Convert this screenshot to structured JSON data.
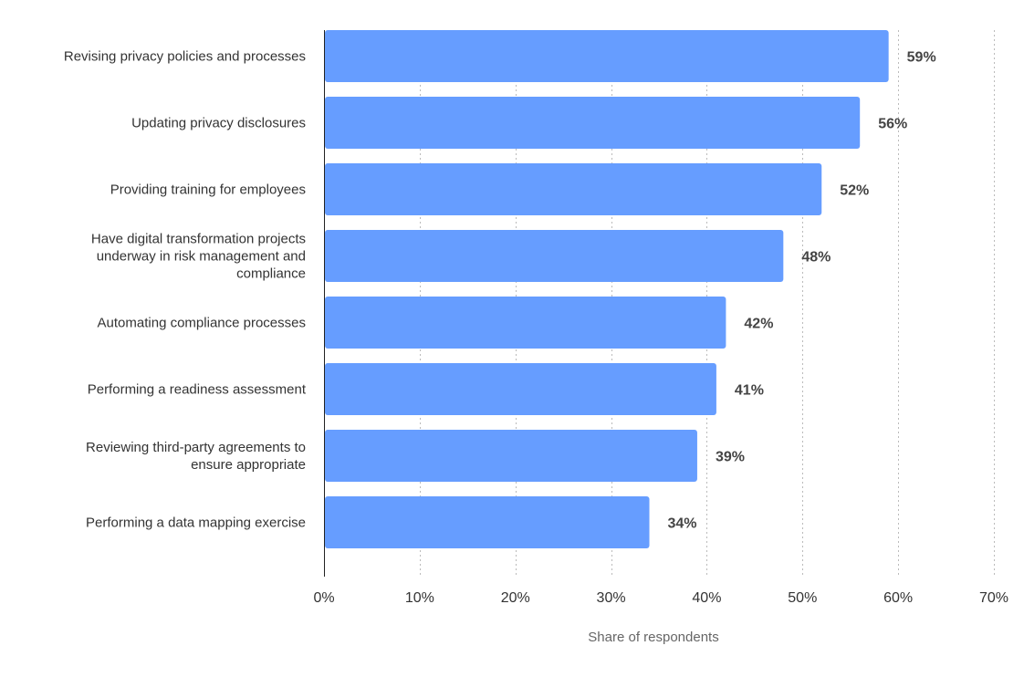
{
  "chart_data": {
    "type": "bar",
    "orientation": "horizontal",
    "categories": [
      "Revising privacy policies and processes",
      "Updating privacy disclosures",
      "Providing training for employees",
      "Have digital transformation projects underway in risk management and compliance",
      "Automating compliance processes",
      "Performing a readiness assessment",
      "Reviewing third-party agreements to ensure appropriate",
      "Performing a data mapping exercise"
    ],
    "category_lines": [
      [
        "Revising privacy policies and processes"
      ],
      [
        "Updating privacy disclosures"
      ],
      [
        "Providing training for employees"
      ],
      [
        "Have digital transformation projects",
        "underway in risk management and",
        "compliance"
      ],
      [
        "Automating compliance processes"
      ],
      [
        "Performing a readiness assessment"
      ],
      [
        "Reviewing third-party agreements to",
        "ensure appropriate"
      ],
      [
        "Performing a data mapping exercise"
      ]
    ],
    "values": [
      59,
      56,
      52,
      48,
      42,
      41,
      39,
      34
    ],
    "value_labels": [
      "59%",
      "56%",
      "52%",
      "48%",
      "42%",
      "41%",
      "39%",
      "34%"
    ],
    "xlim": [
      0,
      70
    ],
    "xticks": [
      0,
      10,
      20,
      30,
      40,
      50,
      60,
      70
    ],
    "xtick_labels": [
      "0%",
      "10%",
      "20%",
      "30%",
      "40%",
      "50%",
      "60%",
      "70%"
    ],
    "xlabel": "Share of respondents",
    "grid": true,
    "bar_color": "#669dff"
  }
}
